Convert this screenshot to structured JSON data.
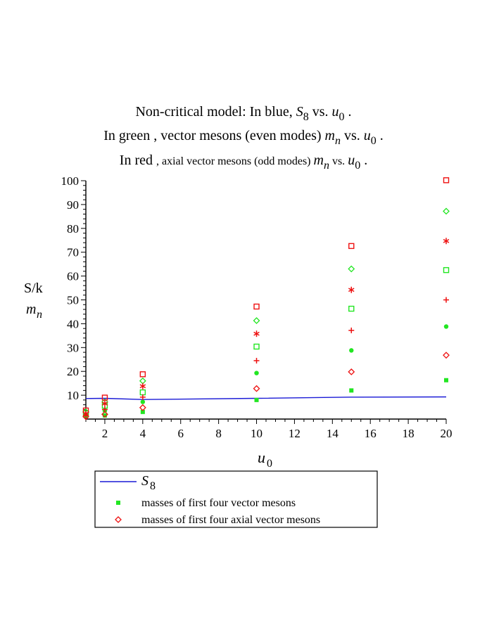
{
  "chart_data": {
    "type": "scatter",
    "title_lines": [
      {
        "parts": [
          {
            "text": "Non-critical model: In blue, ",
            "style": "big"
          },
          {
            "text": "S",
            "style": "var"
          },
          {
            "text": "8",
            "style": "sub"
          },
          {
            "text": "  vs.  ",
            "style": "big"
          },
          {
            "text": "u",
            "style": "var"
          },
          {
            "text": "0",
            "style": "sub"
          },
          {
            "text": " .",
            "style": "big"
          }
        ]
      },
      {
        "parts": [
          {
            "text": "In green ,  vector mesons (even modes)  ",
            "style": "big"
          },
          {
            "text": "m",
            "style": "var"
          },
          {
            "text": "n",
            "style": "subvar"
          },
          {
            "text": " vs. ",
            "style": "big"
          },
          {
            "text": "u",
            "style": "var"
          },
          {
            "text": "0",
            "style": "sub"
          },
          {
            "text": " .",
            "style": "big"
          }
        ]
      },
      {
        "parts": [
          {
            "text": "In red ",
            "style": "big"
          },
          {
            "text": ", axial  vector mesons  (odd modes)  ",
            "style": "small"
          },
          {
            "text": "m",
            "style": "var"
          },
          {
            "text": "n",
            "style": "subvar"
          },
          {
            "text": "  vs. ",
            "style": "small"
          },
          {
            "text": "u",
            "style": "var"
          },
          {
            "text": "0",
            "style": "sub"
          },
          {
            "text": " .",
            "style": "big"
          }
        ]
      }
    ],
    "ylabel_lines": [
      "S/k",
      "m_n"
    ],
    "ylabel_text": "S/k",
    "ylabel_m": "m",
    "ylabel_n": "n",
    "xlabel_var": "u",
    "xlabel_sub": "0",
    "xlim": [
      1,
      20
    ],
    "ylim": [
      0,
      100
    ],
    "xticks": [
      2,
      4,
      6,
      8,
      10,
      12,
      14,
      16,
      18,
      20
    ],
    "yticks": [
      10,
      20,
      30,
      40,
      50,
      60,
      70,
      80,
      90,
      100
    ],
    "legend": {
      "position": "bottom",
      "entries": [
        {
          "label_var": "S",
          "label_sub": "8",
          "kind": "line"
        },
        {
          "label": "masses of  first four  vector  mesons",
          "kind": "green"
        },
        {
          "label": "masses of first four axial vector mesons",
          "kind": "red"
        }
      ]
    },
    "colors": {
      "blue": "#1a1ad6",
      "green": "#22e622",
      "red": "#ee1111"
    },
    "series": [
      {
        "name": "S8",
        "kind": "line",
        "color": "#1a1ad6",
        "points": [
          [
            1,
            8.6
          ],
          [
            2,
            8.7
          ],
          [
            4,
            8.2
          ],
          [
            10,
            8.7
          ],
          [
            15,
            9.2
          ],
          [
            20,
            9.3
          ]
        ]
      },
      {
        "name": "vector meson mode 1",
        "color": "#22e622",
        "marker": "filled-square",
        "points": [
          [
            1,
            1.3
          ],
          [
            2,
            1.5
          ],
          [
            4,
            3.0
          ],
          [
            10,
            8.0
          ],
          [
            15,
            12.0
          ],
          [
            20,
            16.3
          ]
        ]
      },
      {
        "name": "vector meson mode 2",
        "color": "#22e622",
        "marker": "filled-circle",
        "points": [
          [
            1,
            1.8
          ],
          [
            2,
            3.5
          ],
          [
            4,
            7.2
          ],
          [
            10,
            19.3
          ],
          [
            15,
            28.8
          ],
          [
            20,
            38.8
          ]
        ]
      },
      {
        "name": "vector meson mode 3",
        "color": "#22e622",
        "marker": "open-square",
        "points": [
          [
            1,
            2.4
          ],
          [
            2,
            5.6
          ],
          [
            4,
            11.2
          ],
          [
            10,
            30.4
          ],
          [
            15,
            46.3
          ],
          [
            20,
            62.5
          ]
        ]
      },
      {
        "name": "vector meson mode 4",
        "color": "#22e622",
        "marker": "open-diamond",
        "points": [
          [
            1,
            3.0
          ],
          [
            2,
            7.2
          ],
          [
            4,
            16.0
          ],
          [
            10,
            41.3
          ],
          [
            15,
            63.0
          ],
          [
            20,
            87.2
          ]
        ]
      },
      {
        "name": "axial vector meson mode 1",
        "color": "#ee1111",
        "marker": "open-diamond",
        "points": [
          [
            1,
            1.0
          ],
          [
            2,
            2.0
          ],
          [
            4,
            4.8
          ],
          [
            10,
            12.8
          ],
          [
            15,
            19.8
          ],
          [
            20,
            26.8
          ]
        ]
      },
      {
        "name": "axial vector meson mode 2",
        "color": "#ee1111",
        "marker": "plus",
        "points": [
          [
            1,
            1.5
          ],
          [
            2,
            4.0
          ],
          [
            4,
            9.2
          ],
          [
            10,
            24.5
          ],
          [
            15,
            37.2
          ],
          [
            20,
            50.0
          ]
        ]
      },
      {
        "name": "axial vector meson mode 3",
        "color": "#ee1111",
        "marker": "star",
        "points": [
          [
            1,
            2.2
          ],
          [
            2,
            6.5
          ],
          [
            4,
            13.8
          ],
          [
            10,
            35.8
          ],
          [
            15,
            54.2
          ],
          [
            20,
            74.7
          ]
        ]
      },
      {
        "name": "axial vector meson mode 4",
        "color": "#ee1111",
        "marker": "open-square",
        "points": [
          [
            1,
            3.6
          ],
          [
            2,
            9.0
          ],
          [
            4,
            18.8
          ],
          [
            10,
            47.2
          ],
          [
            15,
            72.6
          ],
          [
            20,
            100.2
          ]
        ]
      }
    ]
  }
}
